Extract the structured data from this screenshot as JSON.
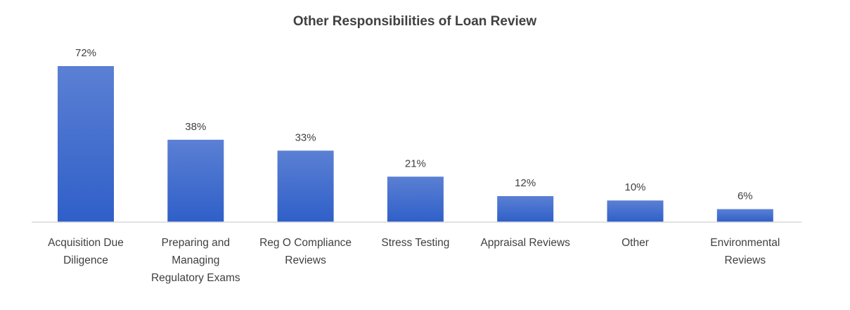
{
  "chart_data": {
    "type": "bar",
    "title": "Other Responsibilities of Loan Review",
    "categories": [
      [
        "Acquisition Due",
        "Diligence"
      ],
      [
        "Preparing and",
        "Managing",
        "Regulatory Exams"
      ],
      [
        "Reg O Compliance",
        "Reviews"
      ],
      [
        "Stress Testing"
      ],
      [
        "Appraisal Reviews"
      ],
      [
        "Other"
      ],
      [
        "Environmental",
        "Reviews"
      ]
    ],
    "values": [
      72,
      38,
      33,
      21,
      12,
      10,
      6
    ],
    "value_labels": [
      "72%",
      "38%",
      "33%",
      "21%",
      "12%",
      "10%",
      "6%"
    ],
    "ylim": [
      0,
      72
    ],
    "grid": false,
    "colors": {
      "bar_top": "#5b80d4",
      "bar_bottom": "#2f5fc8",
      "axis": "#d9d9d9",
      "text": "#404040"
    }
  }
}
